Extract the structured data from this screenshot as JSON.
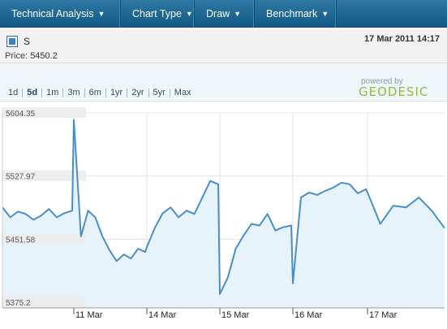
{
  "toolbar": {
    "technical_analysis": "Technical Analysis",
    "chart_type": "Chart Type",
    "draw": "Draw",
    "benchmark": "Benchmark"
  },
  "header": {
    "symbol": "S",
    "price_label": "Price:",
    "price_value": "5450.2",
    "timestamp": "17 Mar 2011 14:17"
  },
  "ranges": [
    "1d",
    "5d",
    "1m",
    "3m",
    "6m",
    "1yr",
    "2yr",
    "5yr",
    "Max"
  ],
  "active_range": "5d",
  "logo": {
    "powered_by": "powered by",
    "brand": "GEODESIC"
  },
  "colors": {
    "toolbar": "#1c6a97",
    "line": "#4a8ec8",
    "area": "#e7f3fb",
    "brand": "#8fbc3d"
  },
  "chart_data": {
    "type": "area",
    "y_ticks": [
      "5604.35",
      "5527.97",
      "5451.58",
      "5375.2"
    ],
    "ylim": [
      5375.2,
      5604.35
    ],
    "x_ticks": [
      "11 Mar",
      "14 Mar",
      "15 Mar",
      "16 Mar",
      "17 Mar"
    ],
    "x": [
      "10 Mar 08:00",
      "10 Mar 09:00",
      "10 Mar 10:00",
      "10 Mar 11:00",
      "10 Mar 12:00",
      "10 Mar 13:00",
      "10 Mar 14:00",
      "10 Mar 15:00",
      "10 Mar 16:00",
      "10 Mar 16:30",
      "11 Mar 08:00",
      "11 Mar 08:05",
      "11 Mar 09:00",
      "11 Mar 10:00",
      "11 Mar 11:00",
      "11 Mar 12:00",
      "11 Mar 13:00",
      "11 Mar 14:00",
      "11 Mar 15:00",
      "11 Mar 16:00",
      "11 Mar 16:30",
      "14 Mar 08:00",
      "14 Mar 09:00",
      "14 Mar 10:00",
      "14 Mar 11:00",
      "14 Mar 12:00",
      "14 Mar 13:00",
      "14 Mar 14:00",
      "14 Mar 15:00",
      "14 Mar 16:00",
      "14 Mar 16:30",
      "15 Mar 08:00",
      "15 Mar 09:00",
      "15 Mar 10:00",
      "15 Mar 11:00",
      "15 Mar 12:00",
      "15 Mar 13:00",
      "15 Mar 14:00",
      "15 Mar 15:00",
      "15 Mar 16:00",
      "15 Mar 16:30",
      "16 Mar 08:00",
      "16 Mar 09:00",
      "16 Mar 10:00",
      "16 Mar 11:00",
      "16 Mar 12:00",
      "16 Mar 13:00",
      "16 Mar 14:00",
      "16 Mar 15:00",
      "16 Mar 16:00",
      "16 Mar 16:30",
      "17 Mar 08:00",
      "17 Mar 09:00",
      "17 Mar 10:00",
      "17 Mar 11:00",
      "17 Mar 12:00",
      "17 Mar 13:00",
      "17 Mar 14:00"
    ],
    "series": [
      {
        "values": [
          5490,
          5478,
          5485,
          5482,
          5475,
          5480,
          5488,
          5478,
          5483,
          5486,
          5596,
          5455,
          5486,
          5478,
          5455,
          5438,
          5425,
          5433,
          5428,
          5440,
          5436,
          5442,
          5465,
          5483,
          5490,
          5478,
          5486,
          5482,
          5502,
          5522,
          5518,
          5385,
          5405,
          5440,
          5456,
          5470,
          5468,
          5482,
          5462,
          5466,
          5468,
          5398,
          5502,
          5508,
          5505,
          5510,
          5514,
          5520,
          5518,
          5507,
          5512,
          5508,
          5470,
          5492,
          5490,
          5502,
          5486,
          5465
        ]
      }
    ]
  }
}
